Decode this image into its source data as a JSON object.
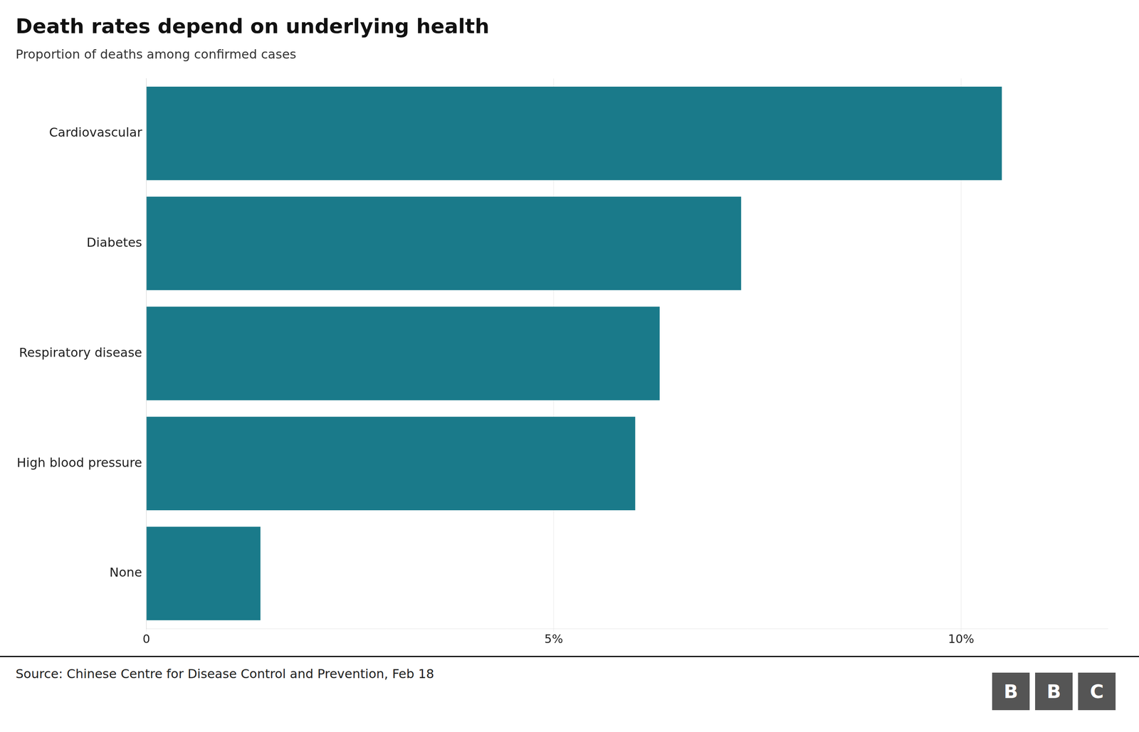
{
  "chart_data": {
    "type": "bar",
    "orientation": "horizontal",
    "title": "Death rates depend on underlying health",
    "subtitle": "Proportion of deaths among confirmed cases",
    "categories": [
      "None",
      "High blood pressure",
      "Respiratory disease",
      "Diabetes",
      "Cardiovascular"
    ],
    "values": [
      1.4,
      6.0,
      6.3,
      7.3,
      10.5
    ],
    "color": "#1a7a8a",
    "xlim": [
      0,
      11.8
    ],
    "xticks": [
      0,
      {
        "value": 5,
        "label": "5%"
      },
      {
        "value": 10,
        "label": "10%"
      }
    ],
    "grid": true,
    "annotations": [
      "Source: Chinese Centre for Disease Control and Prevention, Feb 18",
      "BBC"
    ]
  }
}
